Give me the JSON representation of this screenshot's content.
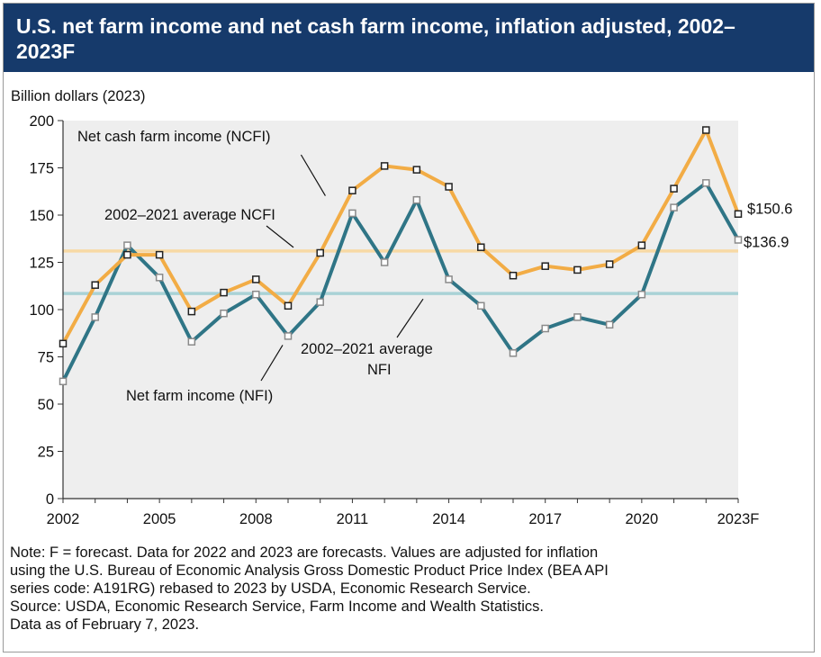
{
  "title": "U.S. net farm income and net cash farm income, inflation adjusted, 2002–2023F",
  "note": "Note: F = forecast. Data for 2022 and 2023 are forecasts. Values are adjusted for inflation\nusing the U.S. Bureau of Economic Analysis Gross Domestic Product Price Index (BEA API\nseries code: A191RG) rebased to 2023 by USDA, Economic Research Service.\nSource: USDA, Economic Research Service, Farm Income and Wealth Statistics.\nData as of February 7, 2023.",
  "colors": {
    "header_bg": "#163a6b",
    "ncfi_line": "#f2ac45",
    "nfi_line": "#2f7586",
    "ncfi_avg": "#f7d9a5",
    "nfi_avg": "#a9d2d6",
    "plot_bg": "#eeeeee"
  },
  "chart_data": {
    "type": "line",
    "ylabel": "Billion dollars (2023)",
    "ylim": [
      0,
      200
    ],
    "yticks": [
      "0",
      "25",
      "50",
      "75",
      "100",
      "125",
      "150",
      "175",
      "200"
    ],
    "xlim": [
      2002,
      2023
    ],
    "xticks": [
      {
        "x": 2002,
        "label": "2002"
      },
      {
        "x": 2005,
        "label": "2005"
      },
      {
        "x": 2008,
        "label": "2008"
      },
      {
        "x": 2011,
        "label": "2011"
      },
      {
        "x": 2014,
        "label": "2014"
      },
      {
        "x": 2017,
        "label": "2017"
      },
      {
        "x": 2020,
        "label": "2020"
      },
      {
        "x": 2023,
        "label": "2023F"
      }
    ],
    "grid": false,
    "x": [
      2002,
      2003,
      2004,
      2005,
      2006,
      2007,
      2008,
      2009,
      2010,
      2011,
      2012,
      2013,
      2014,
      2015,
      2016,
      2017,
      2018,
      2019,
      2020,
      2021,
      2022,
      2023
    ],
    "series": [
      {
        "name": "Net cash farm income (NCFI)",
        "values": [
          82,
          113,
          129,
          129,
          99,
          109,
          116,
          102,
          130,
          163,
          176,
          174,
          165,
          133,
          118,
          123,
          121,
          124,
          134,
          164,
          195,
          150.6
        ]
      },
      {
        "name": "Net farm income (NFI)",
        "values": [
          62,
          96,
          134,
          117,
          83,
          98,
          108,
          86,
          104,
          151,
          125,
          158,
          116,
          102,
          77,
          90,
          96,
          92,
          108,
          154,
          167,
          136.9
        ]
      }
    ],
    "reference_lines": [
      {
        "name": "2002–2021 average NCFI",
        "value": 131
      },
      {
        "name": "2002–2021 average NFI",
        "value": 108.5
      }
    ],
    "annotations": {
      "ncfi_label": "Net cash farm income (NCFI)",
      "nfi_label": "Net farm income (NFI)",
      "ncfi_avg_label": "2002–2021 average NCFI",
      "nfi_avg_label_1": "2002–2021 average",
      "nfi_avg_label_2": "NFI",
      "ncfi_end_value": "$150.6",
      "nfi_end_value": "$136.9"
    }
  }
}
